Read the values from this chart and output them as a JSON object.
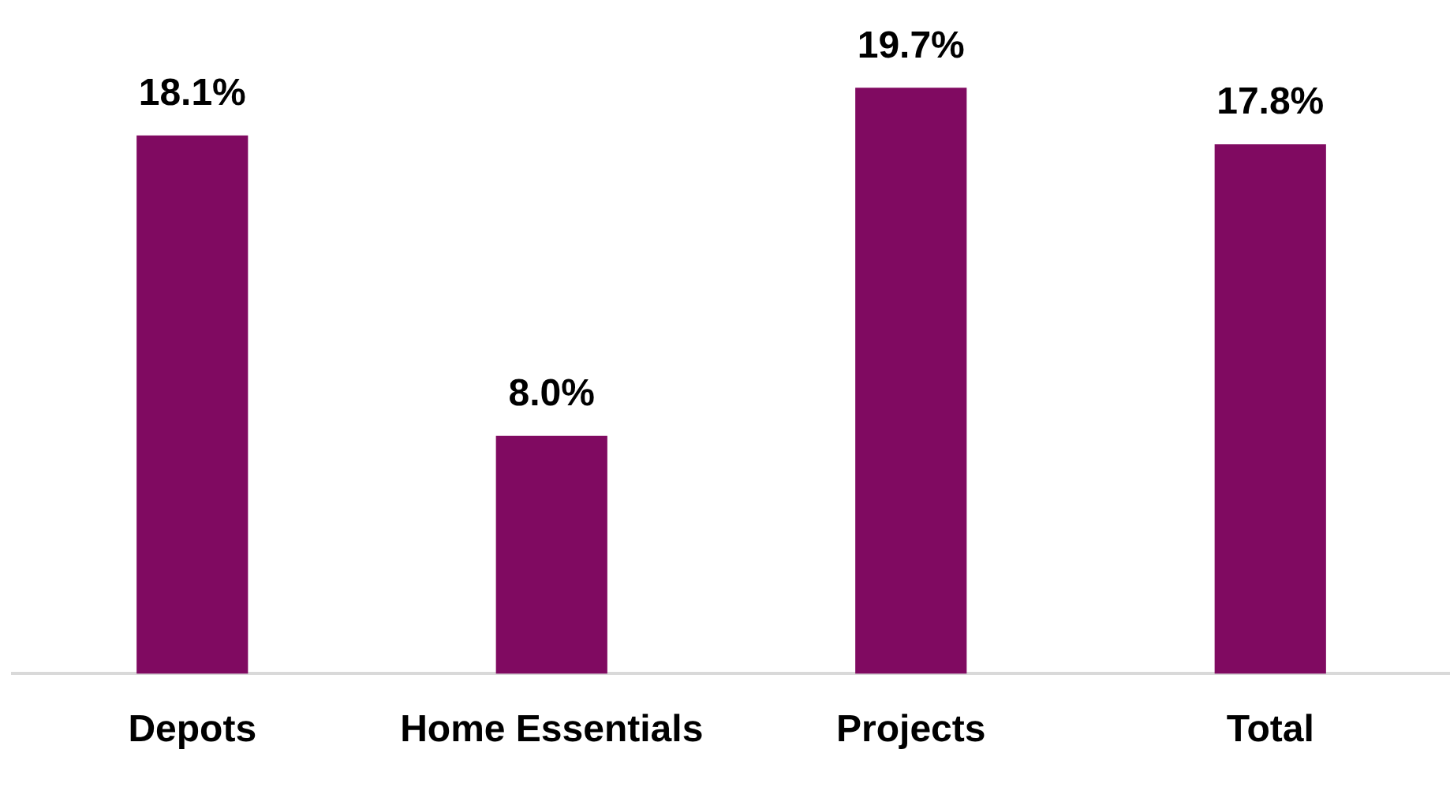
{
  "chart_data": {
    "type": "bar",
    "categories": [
      "Depots",
      "Home Essentials",
      "Projects",
      "Total"
    ],
    "values": [
      18.1,
      8.0,
      19.7,
      17.8
    ],
    "value_labels": [
      "18.1%",
      "8.0%",
      "19.7%",
      "17.8%"
    ],
    "color": "#800a61",
    "grid": false,
    "legend": false
  }
}
